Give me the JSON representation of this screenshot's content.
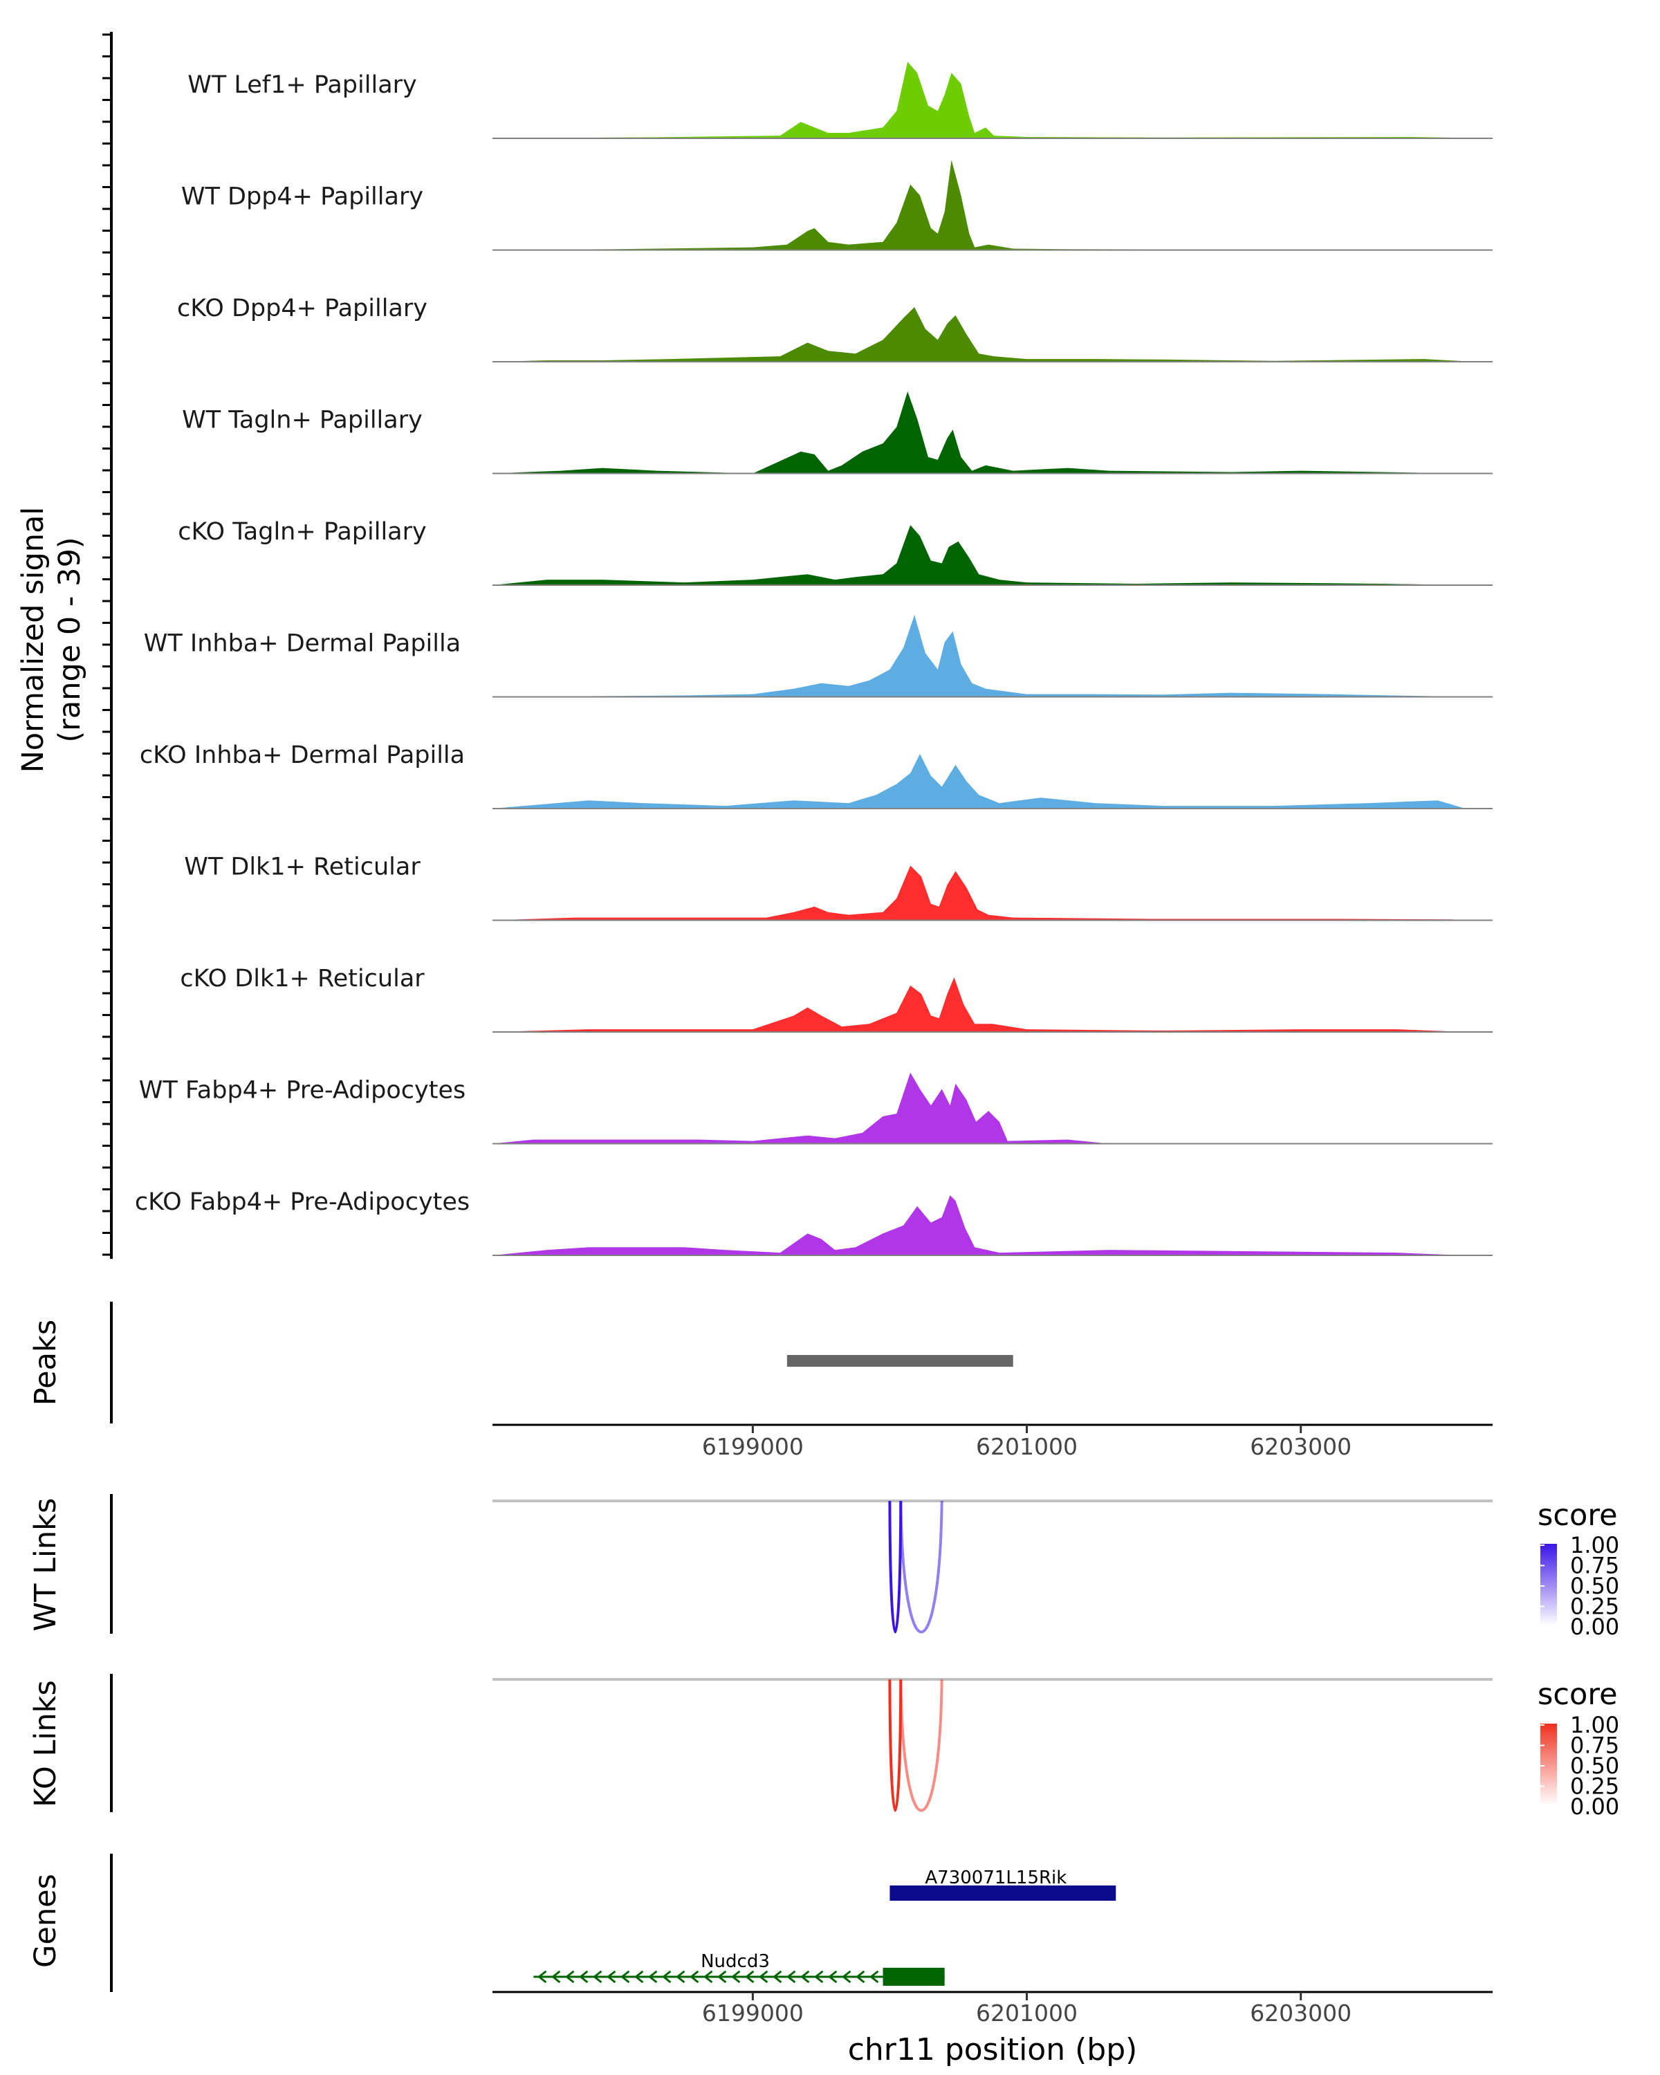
{
  "chart_data": {
    "type": "area",
    "genomic_coverage_plot": true,
    "y_axis": {
      "label_line1": "Normalized signal",
      "label_line2": "(range 0 - 39)",
      "ylim": [
        0,
        39
      ]
    },
    "x_axis": {
      "label": "chr11 position (bp)",
      "xlim": [
        6197100,
        6204400
      ],
      "ticks": [
        6199000,
        6201000,
        6203000
      ],
      "tick_labels": [
        "6199000",
        "6201000",
        "6203000"
      ]
    },
    "tracks": [
      {
        "name": "WT Lef1+ Papillary",
        "color": "#6dcd00",
        "points": [
          [
            6197100,
            0
          ],
          [
            6198300,
            0.4
          ],
          [
            6199200,
            1
          ],
          [
            6199350,
            6
          ],
          [
            6199450,
            4
          ],
          [
            6199550,
            2
          ],
          [
            6199700,
            2
          ],
          [
            6199950,
            4
          ],
          [
            6200050,
            10
          ],
          [
            6200130,
            28
          ],
          [
            6200200,
            24
          ],
          [
            6200280,
            12
          ],
          [
            6200350,
            10
          ],
          [
            6200400,
            16
          ],
          [
            6200450,
            24
          ],
          [
            6200520,
            20
          ],
          [
            6200580,
            8
          ],
          [
            6200620,
            2
          ],
          [
            6200700,
            4
          ],
          [
            6200760,
            1
          ],
          [
            6201000,
            0.5
          ],
          [
            6202000,
            0.3
          ],
          [
            6202800,
            0.4
          ],
          [
            6203800,
            0.5
          ],
          [
            6204200,
            0.2
          ]
        ]
      },
      {
        "name": "WT Dpp4+ Papillary",
        "color": "#4c8a00",
        "points": [
          [
            6197100,
            0
          ],
          [
            6198000,
            0.3
          ],
          [
            6199000,
            1
          ],
          [
            6199250,
            2
          ],
          [
            6199400,
            7
          ],
          [
            6199450,
            8
          ],
          [
            6199550,
            3
          ],
          [
            6199700,
            2
          ],
          [
            6199950,
            3
          ],
          [
            6200050,
            10
          ],
          [
            6200150,
            24
          ],
          [
            6200220,
            20
          ],
          [
            6200300,
            8
          ],
          [
            6200350,
            6
          ],
          [
            6200400,
            14
          ],
          [
            6200450,
            33
          ],
          [
            6200520,
            20
          ],
          [
            6200580,
            6
          ],
          [
            6200620,
            1
          ],
          [
            6200720,
            2
          ],
          [
            6200900,
            0.5
          ],
          [
            6201300,
            0.3
          ],
          [
            6202500,
            0.2
          ],
          [
            6204200,
            0
          ]
        ]
      },
      {
        "name": "cKO Dpp4+ Papillary",
        "color": "#4c8a00",
        "points": [
          [
            6197100,
            0
          ],
          [
            6197500,
            0.5
          ],
          [
            6197900,
            0.5
          ],
          [
            6198400,
            1
          ],
          [
            6198800,
            1.5
          ],
          [
            6199200,
            2
          ],
          [
            6199400,
            7
          ],
          [
            6199550,
            4
          ],
          [
            6199750,
            3
          ],
          [
            6199950,
            8
          ],
          [
            6200100,
            16
          ],
          [
            6200180,
            20
          ],
          [
            6200260,
            12
          ],
          [
            6200350,
            8
          ],
          [
            6200420,
            14
          ],
          [
            6200480,
            17
          ],
          [
            6200560,
            10
          ],
          [
            6200650,
            3
          ],
          [
            6200760,
            2
          ],
          [
            6201000,
            1
          ],
          [
            6201500,
            1
          ],
          [
            6202000,
            0.8
          ],
          [
            6202800,
            0.3
          ],
          [
            6203900,
            1
          ],
          [
            6204200,
            0.2
          ]
        ]
      },
      {
        "name": "WT Tagln+ Papillary",
        "color": "#006400",
        "points": [
          [
            6197100,
            0
          ],
          [
            6197600,
            1
          ],
          [
            6197900,
            2
          ],
          [
            6198300,
            1
          ],
          [
            6199000,
            0
          ],
          [
            6199350,
            8
          ],
          [
            6199450,
            7
          ],
          [
            6199550,
            1
          ],
          [
            6199650,
            3
          ],
          [
            6199800,
            8
          ],
          [
            6199950,
            11
          ],
          [
            6200050,
            17
          ],
          [
            6200130,
            30
          ],
          [
            6200200,
            20
          ],
          [
            6200280,
            6
          ],
          [
            6200350,
            5
          ],
          [
            6200420,
            13
          ],
          [
            6200460,
            16
          ],
          [
            6200520,
            6
          ],
          [
            6200600,
            1
          ],
          [
            6200700,
            3
          ],
          [
            6200900,
            1
          ],
          [
            6201300,
            2
          ],
          [
            6201600,
            1
          ],
          [
            6202500,
            0.5
          ],
          [
            6203000,
            1
          ],
          [
            6204200,
            0
          ]
        ]
      },
      {
        "name": "cKO Tagln+ Papillary",
        "color": "#006400",
        "points": [
          [
            6197100,
            0
          ],
          [
            6197500,
            2
          ],
          [
            6197900,
            2
          ],
          [
            6198500,
            1
          ],
          [
            6199000,
            2
          ],
          [
            6199400,
            4
          ],
          [
            6199600,
            2
          ],
          [
            6199750,
            3
          ],
          [
            6199950,
            4
          ],
          [
            6200050,
            8
          ],
          [
            6200150,
            22
          ],
          [
            6200220,
            18
          ],
          [
            6200300,
            9
          ],
          [
            6200380,
            8
          ],
          [
            6200430,
            14
          ],
          [
            6200500,
            16
          ],
          [
            6200580,
            10
          ],
          [
            6200650,
            4
          ],
          [
            6200800,
            2
          ],
          [
            6201000,
            1
          ],
          [
            6201800,
            0.5
          ],
          [
            6202500,
            1
          ],
          [
            6203600,
            0.5
          ],
          [
            6204200,
            0
          ]
        ]
      },
      {
        "name": "WT Inhba+ Dermal Papilla",
        "color": "#5dade2",
        "points": [
          [
            6197100,
            0
          ],
          [
            6198500,
            0.5
          ],
          [
            6199000,
            1
          ],
          [
            6199300,
            3
          ],
          [
            6199500,
            5
          ],
          [
            6199700,
            4
          ],
          [
            6199850,
            6
          ],
          [
            6200000,
            10
          ],
          [
            6200100,
            18
          ],
          [
            6200180,
            30
          ],
          [
            6200260,
            16
          ],
          [
            6200350,
            10
          ],
          [
            6200400,
            20
          ],
          [
            6200460,
            24
          ],
          [
            6200520,
            12
          ],
          [
            6200600,
            5
          ],
          [
            6200700,
            3
          ],
          [
            6201000,
            1
          ],
          [
            6201500,
            1
          ],
          [
            6202000,
            0.8
          ],
          [
            6202500,
            1.5
          ],
          [
            6203200,
            1
          ],
          [
            6204200,
            0
          ]
        ]
      },
      {
        "name": "cKO Inhba+ Dermal Papilla",
        "color": "#5dade2",
        "points": [
          [
            6197100,
            0
          ],
          [
            6197800,
            3
          ],
          [
            6198200,
            2
          ],
          [
            6198800,
            1
          ],
          [
            6199300,
            3
          ],
          [
            6199700,
            2
          ],
          [
            6199900,
            5
          ],
          [
            6200050,
            9
          ],
          [
            6200150,
            13
          ],
          [
            6200220,
            20
          ],
          [
            6200300,
            12
          ],
          [
            6200380,
            8
          ],
          [
            6200430,
            12
          ],
          [
            6200480,
            16
          ],
          [
            6200560,
            10
          ],
          [
            6200650,
            5
          ],
          [
            6200800,
            2
          ],
          [
            6201100,
            4
          ],
          [
            6201500,
            2
          ],
          [
            6202000,
            1
          ],
          [
            6202800,
            1
          ],
          [
            6203500,
            2
          ],
          [
            6204000,
            3
          ],
          [
            6204200,
            0
          ]
        ]
      },
      {
        "name": "WT Dlk1+ Reticular",
        "color": "#ff2d2d",
        "points": [
          [
            6197100,
            0
          ],
          [
            6197700,
            1
          ],
          [
            6198600,
            1
          ],
          [
            6199100,
            1
          ],
          [
            6199300,
            3
          ],
          [
            6199450,
            5
          ],
          [
            6199550,
            3
          ],
          [
            6199700,
            2
          ],
          [
            6199950,
            3
          ],
          [
            6200050,
            8
          ],
          [
            6200150,
            20
          ],
          [
            6200230,
            16
          ],
          [
            6200300,
            6
          ],
          [
            6200360,
            5
          ],
          [
            6200420,
            13
          ],
          [
            6200480,
            18
          ],
          [
            6200560,
            12
          ],
          [
            6200640,
            4
          ],
          [
            6200720,
            2
          ],
          [
            6200900,
            1
          ],
          [
            6201900,
            0.5
          ],
          [
            6203300,
            0.5
          ],
          [
            6204100,
            0.3
          ],
          [
            6204200,
            0
          ]
        ]
      },
      {
        "name": "cKO Dlk1+ Reticular",
        "color": "#ff2d2d",
        "points": [
          [
            6197100,
            0
          ],
          [
            6197800,
            1
          ],
          [
            6198500,
            1
          ],
          [
            6199000,
            1
          ],
          [
            6199300,
            6
          ],
          [
            6199400,
            9
          ],
          [
            6199500,
            6
          ],
          [
            6199650,
            2
          ],
          [
            6199850,
            3
          ],
          [
            6200050,
            7
          ],
          [
            6200150,
            17
          ],
          [
            6200230,
            14
          ],
          [
            6200300,
            6
          ],
          [
            6200360,
            5
          ],
          [
            6200420,
            14
          ],
          [
            6200470,
            20
          ],
          [
            6200540,
            10
          ],
          [
            6200620,
            3
          ],
          [
            6200750,
            3
          ],
          [
            6201000,
            1
          ],
          [
            6202000,
            0.5
          ],
          [
            6203000,
            1
          ],
          [
            6203700,
            1
          ],
          [
            6204200,
            0
          ]
        ]
      },
      {
        "name": "WT Fabp4+ Pre-Adipocytes",
        "color": "#b036e8",
        "points": [
          [
            6197100,
            0
          ],
          [
            6197400,
            1.5
          ],
          [
            6198600,
            1.5
          ],
          [
            6199000,
            1
          ],
          [
            6199400,
            3
          ],
          [
            6199600,
            2
          ],
          [
            6199800,
            4
          ],
          [
            6199950,
            10
          ],
          [
            6200050,
            11
          ],
          [
            6200150,
            26
          ],
          [
            6200220,
            20
          ],
          [
            6200300,
            14
          ],
          [
            6200380,
            20
          ],
          [
            6200440,
            14
          ],
          [
            6200480,
            22
          ],
          [
            6200560,
            16
          ],
          [
            6200630,
            8
          ],
          [
            6200720,
            12
          ],
          [
            6200800,
            8
          ],
          [
            6200860,
            1
          ],
          [
            6201300,
            1.5
          ],
          [
            6201600,
            0
          ],
          [
            6204200,
            0
          ]
        ]
      },
      {
        "name": "cKO Fabp4+ Pre-Adipocytes",
        "color": "#b036e8",
        "points": [
          [
            6197100,
            0
          ],
          [
            6197500,
            2
          ],
          [
            6197800,
            3
          ],
          [
            6198500,
            3
          ],
          [
            6198800,
            2
          ],
          [
            6199200,
            1
          ],
          [
            6199400,
            8
          ],
          [
            6199500,
            6
          ],
          [
            6199600,
            2
          ],
          [
            6199750,
            3
          ],
          [
            6199950,
            8
          ],
          [
            6200100,
            11
          ],
          [
            6200200,
            18
          ],
          [
            6200300,
            12
          ],
          [
            6200380,
            14
          ],
          [
            6200440,
            22
          ],
          [
            6200480,
            20
          ],
          [
            6200550,
            10
          ],
          [
            6200620,
            3
          ],
          [
            6200800,
            1
          ],
          [
            6201600,
            2
          ],
          [
            6203700,
            1
          ],
          [
            6204200,
            0
          ]
        ]
      }
    ],
    "peaks": {
      "label": "Peaks",
      "regions": [
        [
          6199250,
          6200900
        ]
      ]
    },
    "links": [
      {
        "label": "WT Links",
        "arcs": [
          {
            "start": 6200000,
            "end": 6200080,
            "score": 1.0
          },
          {
            "start": 6200080,
            "end": 6200380,
            "score": 0.55
          }
        ]
      },
      {
        "label": "KO Links",
        "arcs": [
          {
            "start": 6200000,
            "end": 6200080,
            "score": 1.0
          },
          {
            "start": 6200080,
            "end": 6200380,
            "score": 0.55
          }
        ]
      }
    ],
    "legends": [
      {
        "title": "score",
        "ticks": [
          "1.00",
          "0.75",
          "0.50",
          "0.25",
          "0.00"
        ],
        "color_low": "#ffffff",
        "color_high": "#3b14e8"
      },
      {
        "title": "score",
        "ticks": [
          "1.00",
          "0.75",
          "0.50",
          "0.25",
          "0.00"
        ],
        "color_low": "#ffffff",
        "color_high": "#f0301f"
      }
    ],
    "genes": {
      "label": "Genes",
      "items": [
        {
          "name": "A730071L15Rik",
          "start": 6200000,
          "end": 6201650,
          "strand": "-",
          "color": "#0a0a8c",
          "row": 0
        },
        {
          "name": "Nudcd3",
          "start": 6197400,
          "end": 6200400,
          "strand": "-",
          "color": "#006400",
          "row": 1,
          "thick_start": 6199950,
          "thick_end": 6200400
        }
      ]
    }
  }
}
